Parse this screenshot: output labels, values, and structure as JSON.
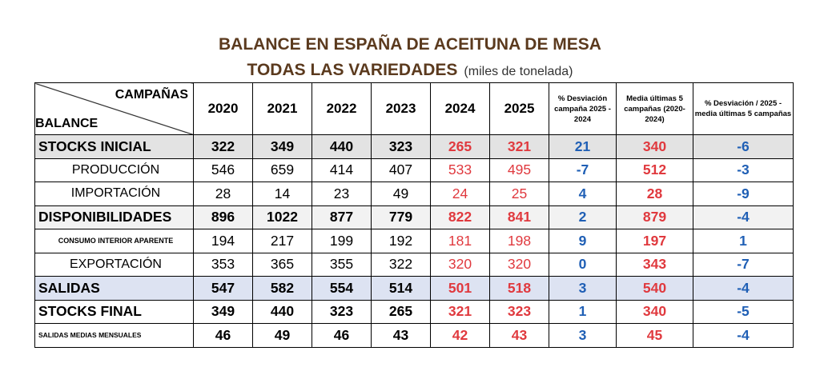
{
  "title_line1": "BALANCE EN ESPAÑA DE ACEITUNA DE MESA",
  "title_line2": "TODAS LAS VARIEDADES",
  "title_unit": "(miles de tonelada)",
  "header": {
    "campanas": "CAMPAÑAS",
    "balance": "BALANCE",
    "years": [
      "2020",
      "2021",
      "2022",
      "2023",
      "2024",
      "2025"
    ],
    "desv": "% Desviación campaña 2025 - 2024",
    "media": "Media últimas 5 campañas (2020-2024)",
    "desv_media": "% Desviación / 2025 - media últimas 5 campañas"
  },
  "rows": [
    {
      "label": "STOCKS INICIAL",
      "values": [
        "322",
        "349",
        "440",
        "323",
        "265",
        "321"
      ],
      "desv": "21",
      "media": "340",
      "desv_media": "-6"
    },
    {
      "label": "PRODUCCIÓN",
      "values": [
        "546",
        "659",
        "414",
        "407",
        "533",
        "495"
      ],
      "desv": "-7",
      "media": "512",
      "desv_media": "-3"
    },
    {
      "label": "IMPORTACIÓN",
      "values": [
        "28",
        "14",
        "23",
        "49",
        "24",
        "25"
      ],
      "desv": "4",
      "media": "28",
      "desv_media": "-9"
    },
    {
      "label": "DISPONIBILIDADES",
      "values": [
        "896",
        "1022",
        "877",
        "779",
        "822",
        "841"
      ],
      "desv": "2",
      "media": "879",
      "desv_media": "-4"
    },
    {
      "label": "CONSUMO INTERIOR APARENTE",
      "values": [
        "194",
        "217",
        "199",
        "192",
        "181",
        "198"
      ],
      "desv": "9",
      "media": "197",
      "desv_media": "1"
    },
    {
      "label": "EXPORTACIÓN",
      "values": [
        "353",
        "365",
        "355",
        "322",
        "320",
        "320"
      ],
      "desv": "0",
      "media": "343",
      "desv_media": "-7"
    },
    {
      "label": "SALIDAS",
      "values": [
        "547",
        "582",
        "554",
        "514",
        "501",
        "518"
      ],
      "desv": "3",
      "media": "540",
      "desv_media": "-4"
    },
    {
      "label": "STOCKS FINAL",
      "values": [
        "349",
        "440",
        "323",
        "265",
        "321",
        "323"
      ],
      "desv": "1",
      "media": "340",
      "desv_media": "-5"
    },
    {
      "label": "SALIDAS MEDIAS MENSUALES",
      "values": [
        "46",
        "49",
        "46",
        "43",
        "42",
        "43"
      ],
      "desv": "3",
      "media": "45",
      "desv_media": "-4"
    }
  ]
}
